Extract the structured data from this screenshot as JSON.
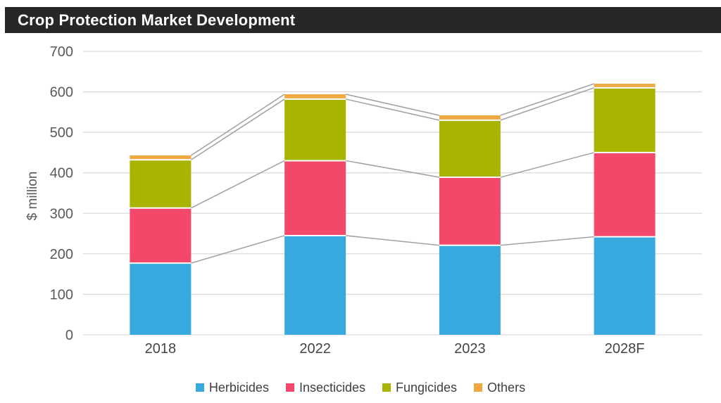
{
  "header": {
    "title": "Crop Protection Market Development"
  },
  "colors": {
    "title_bar_bg": "#272727",
    "title_text": "#ffffff",
    "gridline": "#d9d9d9",
    "series_line": "#a0a0a0",
    "tick_label": "#595959",
    "category_label": "#444444",
    "legend_text": "#404040",
    "segment_separator": "#ffffff",
    "background": "#ffffff"
  },
  "chart_data": {
    "type": "bar",
    "stacked": true,
    "title": "Crop Protection Market Development",
    "ylabel": "$ million",
    "xlabel": "",
    "ylim": [
      0,
      700
    ],
    "yticks": [
      0,
      100,
      200,
      300,
      400,
      500,
      600,
      700
    ],
    "grid": true,
    "series_connector_lines": true,
    "legend_position": "bottom",
    "categories": [
      "2018",
      "2022",
      "2023",
      "2028F"
    ],
    "series": [
      {
        "name": "Herbicides",
        "color": "#38a9df",
        "values": [
          177,
          245,
          221,
          242
        ]
      },
      {
        "name": "Insecticides",
        "color": "#f4486b",
        "values": [
          136,
          185,
          168,
          208
        ]
      },
      {
        "name": "Fungicides",
        "color": "#a9b400",
        "values": [
          119,
          152,
          141,
          160
        ]
      },
      {
        "name": "Others",
        "color": "#f0a843",
        "values": [
          11,
          12,
          12,
          10
        ]
      }
    ]
  }
}
